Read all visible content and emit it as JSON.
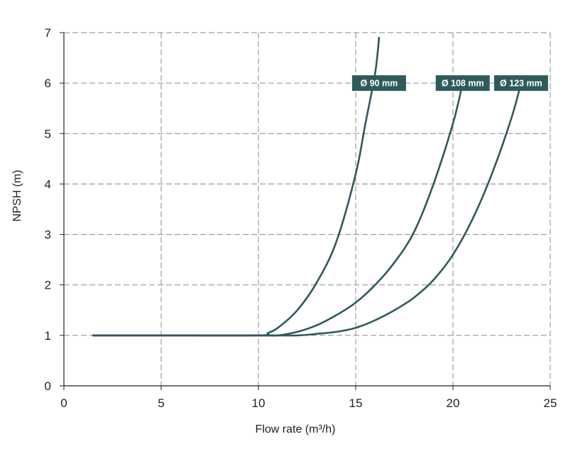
{
  "chart_data": {
    "type": "line",
    "title": "",
    "xlabel": "Flow rate (m³/h)",
    "ylabel": "NPSH (m)",
    "xlim": [
      0,
      25
    ],
    "ylim": [
      0,
      7
    ],
    "xticks": [
      0,
      5,
      10,
      15,
      20,
      25
    ],
    "yticks": [
      0,
      1,
      2,
      3,
      4,
      5,
      6,
      7
    ],
    "grid": true,
    "legend": "inline labels at curve ends",
    "colors": {
      "series": "#2e5a5c",
      "label_bg": "#2e5a5c",
      "grid": "#8a8a8a"
    },
    "series": [
      {
        "name": "Ø 90 mm",
        "x": [
          1.5,
          5,
          10,
          10.5,
          11,
          12,
          13,
          14,
          15,
          15.5,
          16,
          16.2
        ],
        "y": [
          1,
          1,
          1,
          1.05,
          1.15,
          1.5,
          2.05,
          2.85,
          4.2,
          5.2,
          6.2,
          6.9
        ]
      },
      {
        "name": "Ø 108 mm",
        "x": [
          1.5,
          5,
          10,
          11,
          12,
          13,
          14,
          15,
          16,
          17,
          18,
          19,
          20,
          20.5
        ],
        "y": [
          1,
          1,
          1,
          1,
          1.07,
          1.2,
          1.4,
          1.65,
          2,
          2.45,
          3.05,
          4,
          5.2,
          6
        ]
      },
      {
        "name": "Ø 123 mm",
        "x": [
          1.5,
          5,
          10,
          12,
          13,
          14,
          15,
          16,
          17,
          18,
          19,
          20,
          21,
          22,
          23,
          23.5
        ],
        "y": [
          1,
          1,
          1,
          1,
          1.03,
          1.07,
          1.15,
          1.3,
          1.5,
          1.75,
          2.1,
          2.6,
          3.3,
          4.2,
          5.3,
          6
        ]
      }
    ]
  }
}
